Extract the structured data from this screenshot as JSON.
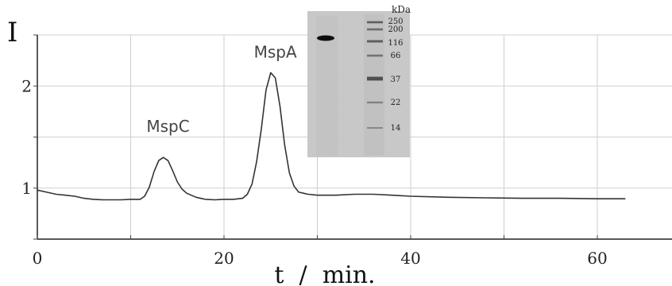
{
  "chart_data": {
    "type": "line",
    "xlabel": "t  /  min.",
    "ylabel": "I",
    "xlim": [
      0,
      68
    ],
    "ylim": [
      0.5,
      2.5
    ],
    "x_ticks": [
      0,
      20,
      40,
      60
    ],
    "x_tick_labels": [
      "0",
      "20",
      "40",
      "60"
    ],
    "y_ticks": [
      1,
      2
    ],
    "y_tick_labels": [
      "1",
      "2"
    ],
    "grid": true,
    "series": [
      {
        "x": [
          0,
          1,
          2,
          3,
          4,
          5,
          6,
          7,
          8,
          9,
          10,
          11,
          11.5,
          12,
          12.5,
          13,
          13.5,
          14,
          14.5,
          15,
          15.5,
          16,
          17,
          18,
          19,
          20,
          21,
          22,
          22.5,
          23,
          23.5,
          24,
          24.5,
          25,
          25.5,
          26,
          26.5,
          27,
          27.5,
          28,
          29,
          30,
          32,
          34,
          36,
          38,
          40,
          44,
          48,
          52,
          56,
          60,
          63
        ],
        "y": [
          0.98,
          0.96,
          0.94,
          0.93,
          0.92,
          0.9,
          0.89,
          0.885,
          0.885,
          0.885,
          0.89,
          0.89,
          0.92,
          1.01,
          1.16,
          1.27,
          1.3,
          1.27,
          1.17,
          1.06,
          0.99,
          0.95,
          0.91,
          0.89,
          0.885,
          0.89,
          0.89,
          0.9,
          0.94,
          1.04,
          1.26,
          1.58,
          1.96,
          2.13,
          2.08,
          1.8,
          1.42,
          1.15,
          1.02,
          0.96,
          0.94,
          0.93,
          0.93,
          0.94,
          0.94,
          0.93,
          0.92,
          0.91,
          0.905,
          0.9,
          0.9,
          0.895,
          0.895
        ]
      }
    ],
    "annotations": [
      {
        "text": "MspC",
        "x": 14,
        "y": 1.55
      },
      {
        "text": "MspA",
        "x": 25.5,
        "y": 2.28
      }
    ],
    "inset": {
      "kda_label": "kDa",
      "markers": [
        "250",
        "200",
        "116",
        "66",
        "37",
        "22",
        "14"
      ]
    }
  }
}
